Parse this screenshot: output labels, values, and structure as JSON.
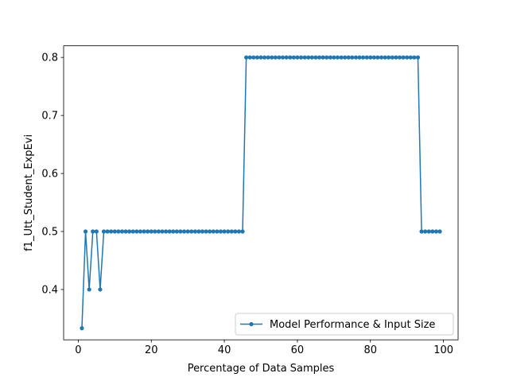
{
  "chart_data": {
    "type": "line",
    "title": "",
    "xlabel": "Percentage of Data Samples",
    "ylabel": "f1_Utt_Student_ExpEvi",
    "xlim": [
      -4,
      104
    ],
    "ylim": [
      0.3133,
      0.82
    ],
    "xticks": [
      0,
      20,
      40,
      60,
      80,
      100
    ],
    "yticks": [
      0.4,
      0.5,
      0.6,
      0.7,
      0.8
    ],
    "grid": false,
    "legend_position": "lower right",
    "series": [
      {
        "name": "Model Performance & Input Size",
        "color": "#1f77b4",
        "marker": "circle",
        "x": [
          1,
          2,
          3,
          4,
          5,
          6,
          7,
          8,
          9,
          10,
          11,
          12,
          13,
          14,
          15,
          16,
          17,
          18,
          19,
          20,
          21,
          22,
          23,
          24,
          25,
          26,
          27,
          28,
          29,
          30,
          31,
          32,
          33,
          34,
          35,
          36,
          37,
          38,
          39,
          40,
          41,
          42,
          43,
          44,
          45,
          46,
          47,
          48,
          49,
          50,
          51,
          52,
          53,
          54,
          55,
          56,
          57,
          58,
          59,
          60,
          61,
          62,
          63,
          64,
          65,
          66,
          67,
          68,
          69,
          70,
          71,
          72,
          73,
          74,
          75,
          76,
          77,
          78,
          79,
          80,
          81,
          82,
          83,
          84,
          85,
          86,
          87,
          88,
          89,
          90,
          91,
          92,
          93,
          94,
          95,
          96,
          97,
          98,
          99
        ],
        "y": [
          0.3333,
          0.5,
          0.4,
          0.5,
          0.5,
          0.4,
          0.5,
          0.5,
          0.5,
          0.5,
          0.5,
          0.5,
          0.5,
          0.5,
          0.5,
          0.5,
          0.5,
          0.5,
          0.5,
          0.5,
          0.5,
          0.5,
          0.5,
          0.5,
          0.5,
          0.5,
          0.5,
          0.5,
          0.5,
          0.5,
          0.5,
          0.5,
          0.5,
          0.5,
          0.5,
          0.5,
          0.5,
          0.5,
          0.5,
          0.5,
          0.5,
          0.5,
          0.5,
          0.5,
          0.5,
          0.8,
          0.8,
          0.8,
          0.8,
          0.8,
          0.8,
          0.8,
          0.8,
          0.8,
          0.8,
          0.8,
          0.8,
          0.8,
          0.8,
          0.8,
          0.8,
          0.8,
          0.8,
          0.8,
          0.8,
          0.8,
          0.8,
          0.8,
          0.8,
          0.8,
          0.8,
          0.8,
          0.8,
          0.8,
          0.8,
          0.8,
          0.8,
          0.8,
          0.8,
          0.8,
          0.8,
          0.8,
          0.8,
          0.8,
          0.8,
          0.8,
          0.8,
          0.8,
          0.8,
          0.8,
          0.8,
          0.8,
          0.8,
          0.5,
          0.5,
          0.5,
          0.5,
          0.5,
          0.5
        ]
      }
    ]
  }
}
